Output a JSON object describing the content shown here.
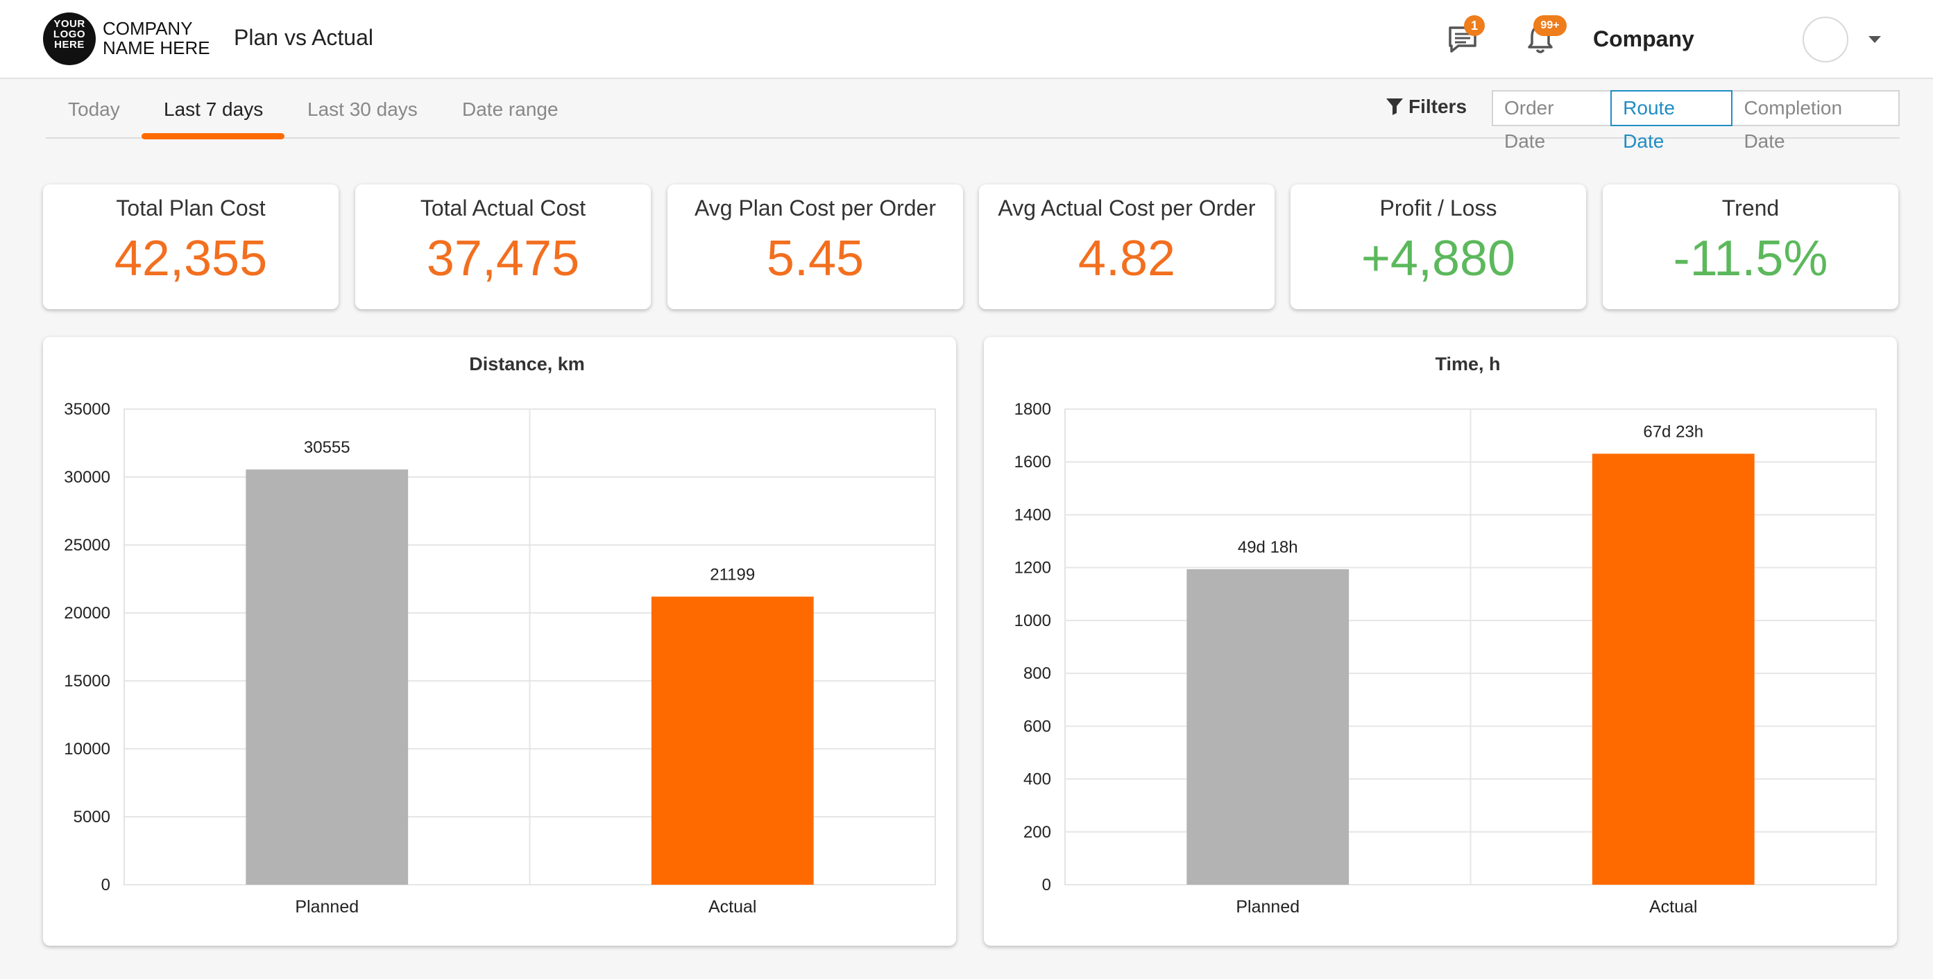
{
  "header": {
    "logo_lines": [
      "YOUR",
      "LOGO",
      "HERE"
    ],
    "company_lines": [
      "COMPANY",
      "NAME HERE"
    ],
    "page_title": "Plan vs Actual",
    "chat_badge": "1",
    "notifications_badge": "99+",
    "org_name": "Company",
    "icons": {
      "chat": "chat-icon",
      "bell": "bell-icon",
      "caret": "chevron-down-icon"
    }
  },
  "tabs": [
    {
      "label": "Today",
      "active": false
    },
    {
      "label": "Last 7 days",
      "active": true
    },
    {
      "label": "Last 30 days",
      "active": false
    },
    {
      "label": "Date range",
      "active": false
    }
  ],
  "filters_label": "Filters",
  "date_modes": [
    {
      "label": "Order Date",
      "active": false
    },
    {
      "label": "Route Date",
      "active": true
    },
    {
      "label": "Completion Date",
      "active": false
    }
  ],
  "kpis": [
    {
      "label": "Total Plan Cost",
      "value": "42,355",
      "color": "#f26f1f"
    },
    {
      "label": "Total Actual Cost",
      "value": "37,475",
      "color": "#f26f1f"
    },
    {
      "label": "Avg Plan Cost per Order",
      "value": "5.45",
      "color": "#f26f1f"
    },
    {
      "label": "Avg Actual Cost per Order",
      "value": "4.82",
      "color": "#f26f1f"
    },
    {
      "label": "Profit / Loss",
      "value": "+4,880",
      "color": "#5cb85c"
    },
    {
      "label": "Trend",
      "value": "-11.5%",
      "color": "#5cb85c"
    }
  ],
  "colors": {
    "accent": "#ff6a00",
    "planned_bar": "#b3b3b3",
    "actual_bar": "#ff6a00",
    "link_blue": "#1f8dc4"
  },
  "chart_data": [
    {
      "type": "bar",
      "title": "Distance, km",
      "categories": [
        "Planned",
        "Actual"
      ],
      "values": [
        30555,
        21199
      ],
      "value_labels": [
        "30555",
        "21199"
      ],
      "ylim": [
        0,
        35000
      ],
      "yticks": [
        0,
        5000,
        10000,
        15000,
        20000,
        25000,
        30000,
        35000
      ],
      "grid": true,
      "legend": "none"
    },
    {
      "type": "bar",
      "title": "Time, h",
      "categories": [
        "Planned",
        "Actual"
      ],
      "values": [
        1194,
        1631
      ],
      "value_labels": [
        "49d 18h",
        "67d 23h"
      ],
      "ylim": [
        0,
        1800
      ],
      "yticks": [
        0,
        200,
        400,
        600,
        800,
        1000,
        1200,
        1400,
        1600,
        1800
      ],
      "grid": true,
      "legend": "none"
    }
  ]
}
